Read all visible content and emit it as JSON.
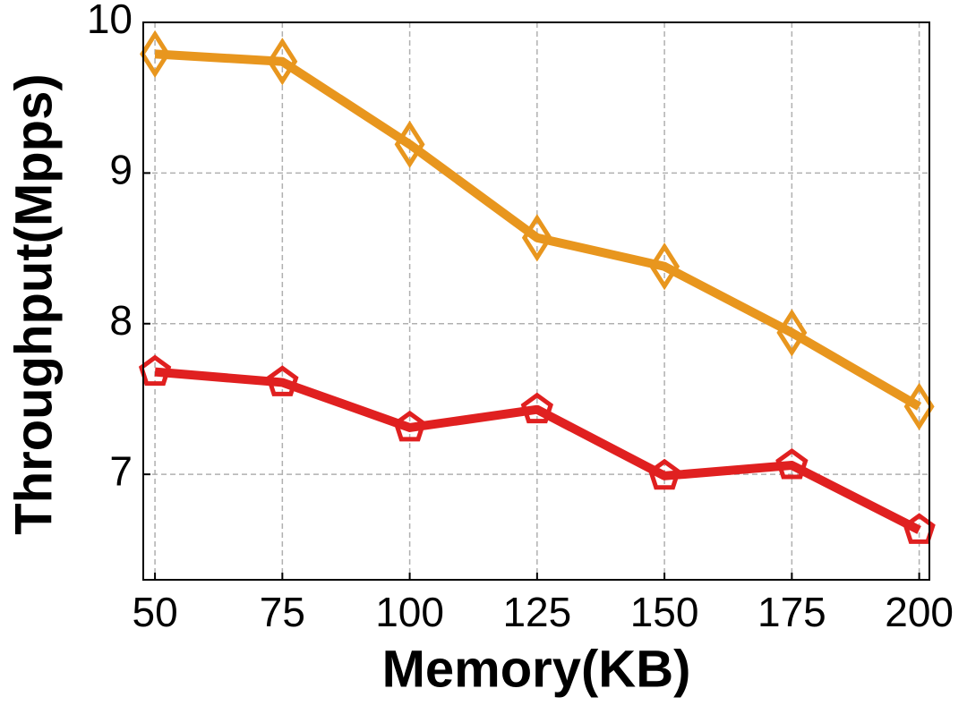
{
  "chart_data": {
    "type": "line",
    "x_label": "Memory(KB)",
    "y_label": "Throughput(Mpps)",
    "x": [
      50,
      75,
      100,
      125,
      150,
      175,
      200
    ],
    "series": [
      {
        "color": "#e8961e",
        "marker": "diamond",
        "values": [
          9.79,
          9.74,
          9.19,
          8.57,
          8.38,
          7.94,
          7.45
        ]
      },
      {
        "color": "#e02020",
        "marker": "pentagon",
        "values": [
          7.68,
          7.61,
          7.31,
          7.43,
          6.99,
          7.06,
          6.63
        ]
      }
    ],
    "xlim": [
      47.7,
      202
    ],
    "xticks": [
      50,
      75,
      100,
      125,
      150,
      175,
      200
    ],
    "ylim": [
      6.3,
      10
    ],
    "yticks": [
      7,
      8,
      9,
      10
    ],
    "grid": true
  }
}
